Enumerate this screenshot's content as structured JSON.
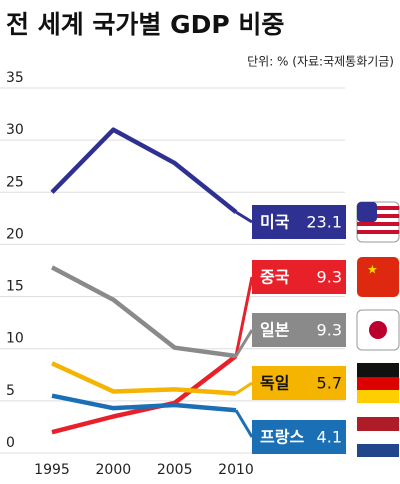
{
  "chart_data": {
    "type": "line",
    "title": "전 세계 국가별 GDP 비중",
    "subtitle": "단위: % (자료:국제통화기금)",
    "x": [
      1995,
      2000,
      2005,
      2010
    ],
    "xlim": [
      1995,
      2010
    ],
    "xticks": [
      1995,
      2000,
      2005,
      2010
    ],
    "ylim": [
      0,
      35
    ],
    "yticks": [
      0,
      5,
      10,
      15,
      20,
      25,
      30,
      35
    ],
    "grid": true,
    "series": [
      {
        "name": "미국",
        "color": "#2e3192",
        "values": [
          25,
          31,
          27.8,
          23.1
        ]
      },
      {
        "name": "중국",
        "color": "#e8202a",
        "values": [
          2,
          3.5,
          4.8,
          9.3
        ]
      },
      {
        "name": "일본",
        "color": "#8a8a8a",
        "values": [
          17.8,
          14.7,
          10.1,
          9.3
        ]
      },
      {
        "name": "독일",
        "color": "#f5b400",
        "values": [
          8.6,
          5.9,
          6.1,
          5.7
        ]
      },
      {
        "name": "프랑스",
        "color": "#1a6fb5",
        "values": [
          5.5,
          4.3,
          4.6,
          4.1
        ]
      }
    ]
  }
}
